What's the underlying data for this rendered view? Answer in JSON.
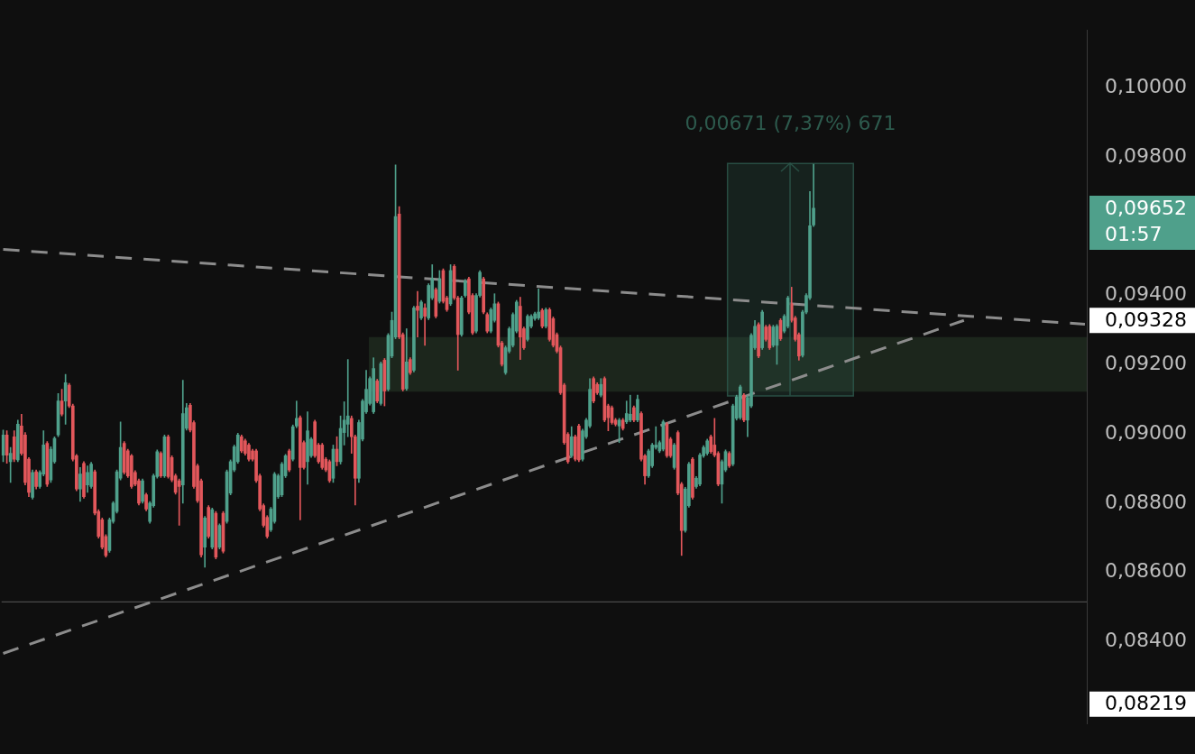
{
  "chart_data": {
    "type": "candlestick",
    "categories": [
      null,
      null,
      null,
      null,
      null,
      null,
      null,
      null,
      null,
      null,
      null,
      null,
      null,
      null,
      null,
      null,
      null,
      null,
      null,
      null,
      null,
      null,
      null,
      null,
      null,
      null,
      null,
      null,
      null,
      null,
      null,
      null,
      null,
      null,
      null,
      null,
      null,
      null,
      null,
      null,
      null,
      null,
      null,
      null,
      null,
      null,
      null,
      null,
      null,
      null,
      null,
      null,
      null,
      null,
      null,
      null,
      null,
      null,
      null,
      null,
      null,
      null,
      null,
      null,
      null,
      null,
      null,
      null,
      null,
      null,
      null,
      null,
      null,
      null,
      null,
      null,
      null,
      null,
      null,
      null,
      null,
      null,
      null,
      null,
      null,
      null,
      null,
      null,
      null,
      null,
      null,
      null,
      null,
      null,
      null,
      null,
      null,
      null,
      null,
      null,
      null,
      null,
      null,
      null,
      null,
      null,
      null,
      null,
      null,
      null,
      null,
      null,
      null,
      null,
      null,
      null,
      null,
      null,
      null,
      null,
      null,
      null,
      null,
      null,
      null,
      null,
      null,
      null,
      null,
      null,
      null,
      null,
      null,
      null,
      null,
      null,
      null,
      null,
      null,
      null,
      null,
      null,
      null,
      null,
      null,
      null,
      null,
      null,
      null,
      null,
      null,
      null,
      null,
      null,
      null,
      null,
      null,
      null,
      null,
      null,
      null,
      null,
      null,
      null,
      null,
      null,
      null,
      null,
      null,
      null,
      null,
      null,
      null,
      null,
      null,
      null,
      null,
      null,
      null,
      null,
      null,
      null,
      null,
      null,
      null,
      null,
      null,
      null,
      null,
      null,
      null,
      null,
      null,
      null,
      null,
      null,
      null,
      null,
      null,
      null,
      null,
      null,
      null,
      null,
      null,
      null,
      null,
      null,
      null,
      null,
      null,
      null,
      null,
      null,
      null,
      null,
      null,
      null,
      null,
      null,
      null,
      null,
      null,
      null,
      null,
      null,
      null,
      null,
      null,
      null,
      null,
      null,
      null,
      null,
      null,
      null,
      null,
      null,
      null,
      null,
      null,
      null,
      null,
      null,
      null,
      null,
      null,
      null,
      null,
      null,
      null,
      null,
      null,
      null,
      null,
      null,
      null,
      null,
      null,
      null,
      null,
      null,
      null,
      null,
      null,
      null,
      null,
      null,
      null,
      null,
      null,
      null,
      null,
      null,
      null,
      null,
      null,
      null,
      null,
      null,
      null,
      null,
      null,
      null,
      null,
      null,
      null,
      null,
      null,
      null,
      null,
      null,
      null,
      null,
      null,
      null
    ],
    "ohlc": [
      [
        0.08939,
        0.09011,
        0.0892,
        0.08997
      ],
      [
        0.08997,
        0.09009,
        0.08915,
        0.08939
      ],
      [
        0.0892,
        0.08961,
        0.0886,
        0.08944
      ],
      [
        0.08992,
        0.09009,
        0.0892,
        0.08927
      ],
      [
        0.08925,
        0.0904,
        0.0892,
        0.09028
      ],
      [
        0.09023,
        0.09057,
        0.08939,
        0.08944
      ],
      [
        0.08997,
        0.09004,
        0.08853,
        0.0886
      ],
      [
        0.08927,
        0.08932,
        0.08819,
        0.08831
      ],
      [
        0.08817,
        0.08896,
        0.08812,
        0.08889
      ],
      [
        0.08891,
        0.08896,
        0.08841,
        0.08848
      ],
      [
        0.08848,
        0.08894,
        0.08843,
        0.08889
      ],
      [
        0.08884,
        0.09009,
        0.08879,
        0.08968
      ],
      [
        0.08973,
        0.08978,
        0.08848,
        0.08855
      ],
      [
        0.08867,
        0.08963,
        0.0886,
        0.08956
      ],
      [
        0.0892,
        0.08992,
        0.08915,
        0.08987
      ],
      [
        0.08997,
        0.09117,
        0.08992,
        0.09095
      ],
      [
        0.09095,
        0.09129,
        0.09052,
        0.09057
      ],
      [
        0.09095,
        0.09172,
        0.09028,
        0.09148
      ],
      [
        0.09141,
        0.09146,
        0.09076,
        0.09081
      ],
      [
        0.09081,
        0.09086,
        0.08922,
        0.08927
      ],
      [
        0.08937,
        0.08941,
        0.08836,
        0.08841
      ],
      [
        0.08841,
        0.08903,
        0.08805,
        0.08884
      ],
      [
        0.08915,
        0.0892,
        0.08814,
        0.08819
      ],
      [
        0.08853,
        0.08908,
        0.08831,
        0.08889
      ],
      [
        0.08848,
        0.08918,
        0.08843,
        0.08913
      ],
      [
        0.08891,
        0.08896,
        0.08766,
        0.08771
      ],
      [
        0.08776,
        0.08781,
        0.08699,
        0.08704
      ],
      [
        0.08752,
        0.08757,
        0.08668,
        0.08673
      ],
      [
        0.08704,
        0.08709,
        0.08644,
        0.08649
      ],
      [
        0.08663,
        0.08757,
        0.08658,
        0.08752
      ],
      [
        0.08747,
        0.08805,
        0.08742,
        0.088
      ],
      [
        0.08776,
        0.08896,
        0.08771,
        0.08891
      ],
      [
        0.08872,
        0.09035,
        0.08867,
        0.08961
      ],
      [
        0.08973,
        0.08978,
        0.08884,
        0.08889
      ],
      [
        0.08951,
        0.08956,
        0.08874,
        0.08879
      ],
      [
        0.08937,
        0.08941,
        0.08843,
        0.08848
      ],
      [
        0.08889,
        0.08894,
        0.0885,
        0.08855
      ],
      [
        0.08865,
        0.0887,
        0.08795,
        0.088
      ],
      [
        0.08805,
        0.0887,
        0.088,
        0.08865
      ],
      [
        0.08824,
        0.08829,
        0.08778,
        0.08783
      ],
      [
        0.08747,
        0.08805,
        0.08742,
        0.088
      ],
      [
        0.08793,
        0.08884,
        0.08788,
        0.08879
      ],
      [
        0.08877,
        0.08954,
        0.08872,
        0.08949
      ],
      [
        0.08944,
        0.08949,
        0.08874,
        0.08879
      ],
      [
        0.08879,
        0.08997,
        0.08874,
        0.08992
      ],
      [
        0.08992,
        0.08997,
        0.08872,
        0.08877
      ],
      [
        0.08932,
        0.08937,
        0.08862,
        0.08867
      ],
      [
        0.08879,
        0.08884,
        0.08826,
        0.08831
      ],
      [
        0.08865,
        0.0887,
        0.08736,
        0.08848
      ],
      [
        0.08853,
        0.09155,
        0.088,
        0.09059
      ],
      [
        0.09016,
        0.09088,
        0.09011,
        0.09076
      ],
      [
        0.09083,
        0.09088,
        0.09006,
        0.09011
      ],
      [
        0.09033,
        0.09038,
        0.08843,
        0.08848
      ],
      [
        0.08908,
        0.08913,
        0.08802,
        0.08807
      ],
      [
        0.08865,
        0.0887,
        0.08644,
        0.08651
      ],
      [
        0.08673,
        0.08762,
        0.08615,
        0.08757
      ],
      [
        0.08788,
        0.08793,
        0.08699,
        0.08704
      ],
      [
        0.08673,
        0.08786,
        0.08668,
        0.08781
      ],
      [
        0.08771,
        0.08776,
        0.08639,
        0.08644
      ],
      [
        0.08673,
        0.0874,
        0.08668,
        0.08736
      ],
      [
        0.08771,
        0.08776,
        0.08656,
        0.08661
      ],
      [
        0.08747,
        0.08896,
        0.08742,
        0.08891
      ],
      [
        0.08829,
        0.08925,
        0.08824,
        0.0892
      ],
      [
        0.08896,
        0.08968,
        0.08891,
        0.08963
      ],
      [
        0.0892,
        0.09002,
        0.08915,
        0.08997
      ],
      [
        0.08992,
        0.08997,
        0.08946,
        0.08951
      ],
      [
        0.0898,
        0.08985,
        0.08939,
        0.08944
      ],
      [
        0.08968,
        0.08973,
        0.08922,
        0.08927
      ],
      [
        0.08951,
        0.08956,
        0.08922,
        0.08927
      ],
      [
        0.08951,
        0.08956,
        0.0886,
        0.08865
      ],
      [
        0.08879,
        0.08884,
        0.08778,
        0.08783
      ],
      [
        0.08793,
        0.08798,
        0.08731,
        0.08736
      ],
      [
        0.08759,
        0.08764,
        0.08699,
        0.08704
      ],
      [
        0.08723,
        0.08788,
        0.08718,
        0.08783
      ],
      [
        0.08747,
        0.08889,
        0.08742,
        0.08884
      ],
      [
        0.08819,
        0.08884,
        0.08814,
        0.08879
      ],
      [
        0.08824,
        0.08918,
        0.08819,
        0.08913
      ],
      [
        0.08879,
        0.08941,
        0.08874,
        0.08937
      ],
      [
        0.08951,
        0.08956,
        0.08891,
        0.08896
      ],
      [
        0.08927,
        0.09026,
        0.08922,
        0.09021
      ],
      [
        0.09023,
        0.09095,
        0.09018,
        0.09045
      ],
      [
        0.09047,
        0.09052,
        0.08752,
        0.08903
      ],
      [
        0.08975,
        0.0898,
        0.08898,
        0.08903
      ],
      [
        0.0892,
        0.09064,
        0.08855,
        0.09009
      ],
      [
        0.08937,
        0.0899,
        0.08932,
        0.08985
      ],
      [
        0.09035,
        0.0904,
        0.08932,
        0.08937
      ],
      [
        0.08968,
        0.08973,
        0.08915,
        0.0892
      ],
      [
        0.08968,
        0.08973,
        0.08898,
        0.08903
      ],
      [
        0.08927,
        0.08932,
        0.08891,
        0.08896
      ],
      [
        0.0892,
        0.08925,
        0.0886,
        0.08865
      ],
      [
        0.08872,
        0.08968,
        0.0886,
        0.08956
      ],
      [
        0.08956,
        0.08992,
        0.08908,
        0.0892
      ],
      [
        0.0892,
        0.09052,
        0.08913,
        0.09016
      ],
      [
        0.09004,
        0.09093,
        0.08968,
        0.0904
      ],
      [
        0.09028,
        0.09215,
        0.08992,
        0.09052
      ],
      [
        0.09045,
        0.09052,
        0.08944,
        0.08992
      ],
      [
        0.08992,
        0.08997,
        0.08795,
        0.08872
      ],
      [
        0.08872,
        0.0904,
        0.0886,
        0.09033
      ],
      [
        0.08985,
        0.091,
        0.0898,
        0.09095
      ],
      [
        0.09064,
        0.09184,
        0.09059,
        0.09129
      ],
      [
        0.09088,
        0.09165,
        0.09083,
        0.0916
      ],
      [
        0.09064,
        0.0922,
        0.09059,
        0.09189
      ],
      [
        0.09153,
        0.09158,
        0.0909,
        0.09095
      ],
      [
        0.09088,
        0.09208,
        0.09083,
        0.09203
      ],
      [
        0.09213,
        0.09218,
        0.09081,
        0.09124
      ],
      [
        0.09129,
        0.0929,
        0.09124,
        0.09285
      ],
      [
        0.09225,
        0.09352,
        0.0922,
        0.09328
      ],
      [
        0.0928,
        0.09777,
        0.09275,
        0.09628
      ],
      [
        0.09635,
        0.09657,
        0.09275,
        0.0928
      ],
      [
        0.09287,
        0.09292,
        0.09124,
        0.09129
      ],
      [
        0.09131,
        0.09304,
        0.09126,
        0.09208
      ],
      [
        0.09215,
        0.0922,
        0.09172,
        0.09177
      ],
      [
        0.09184,
        0.09369,
        0.09179,
        0.09364
      ],
      [
        0.09369,
        0.09412,
        0.0928,
        0.09357
      ],
      [
        0.09335,
        0.09386,
        0.0933,
        0.09381
      ],
      [
        0.09364,
        0.09376,
        0.09256,
        0.0934
      ],
      [
        0.09335,
        0.09434,
        0.0933,
        0.09429
      ],
      [
        0.09393,
        0.09489,
        0.09388,
        0.09448
      ],
      [
        0.09417,
        0.09422,
        0.09335,
        0.0934
      ],
      [
        0.09383,
        0.09472,
        0.09378,
        0.09448
      ],
      [
        0.09472,
        0.09477,
        0.09378,
        0.09383
      ],
      [
        0.09393,
        0.09398,
        0.09354,
        0.09359
      ],
      [
        0.09376,
        0.09489,
        0.09371,
        0.09472
      ],
      [
        0.09484,
        0.09489,
        0.09388,
        0.09393
      ],
      [
        0.09393,
        0.09398,
        0.09184,
        0.09287
      ],
      [
        0.09287,
        0.09398,
        0.09282,
        0.09393
      ],
      [
        0.094,
        0.09446,
        0.09395,
        0.09441
      ],
      [
        0.09448,
        0.09453,
        0.09347,
        0.09352
      ],
      [
        0.094,
        0.09405,
        0.09287,
        0.09292
      ],
      [
        0.09297,
        0.09405,
        0.09292,
        0.094
      ],
      [
        0.094,
        0.09472,
        0.09395,
        0.09467
      ],
      [
        0.09448,
        0.09453,
        0.09347,
        0.09352
      ],
      [
        0.09345,
        0.0935,
        0.09292,
        0.09297
      ],
      [
        0.09297,
        0.09364,
        0.09292,
        0.09359
      ],
      [
        0.09328,
        0.09405,
        0.09323,
        0.09376
      ],
      [
        0.09376,
        0.09381,
        0.09251,
        0.09256
      ],
      [
        0.09263,
        0.09268,
        0.09196,
        0.09201
      ],
      [
        0.09177,
        0.09254,
        0.09172,
        0.09249
      ],
      [
        0.09239,
        0.09309,
        0.09234,
        0.09304
      ],
      [
        0.09256,
        0.0935,
        0.09251,
        0.09345
      ],
      [
        0.09297,
        0.09386,
        0.09292,
        0.09381
      ],
      [
        0.09369,
        0.09395,
        0.09215,
        0.0928
      ],
      [
        0.09304,
        0.09309,
        0.09244,
        0.09249
      ],
      [
        0.09273,
        0.09345,
        0.09268,
        0.0934
      ],
      [
        0.09311,
        0.09345,
        0.09306,
        0.0934
      ],
      [
        0.09333,
        0.09352,
        0.09328,
        0.09347
      ],
      [
        0.09335,
        0.09419,
        0.0933,
        0.09352
      ],
      [
        0.09357,
        0.09362,
        0.09306,
        0.09311
      ],
      [
        0.09311,
        0.09364,
        0.09306,
        0.09359
      ],
      [
        0.09359,
        0.09364,
        0.09268,
        0.09273
      ],
      [
        0.09333,
        0.09338,
        0.09251,
        0.09256
      ],
      [
        0.09287,
        0.09292,
        0.09234,
        0.09239
      ],
      [
        0.09249,
        0.09254,
        0.09114,
        0.09119
      ],
      [
        0.09141,
        0.09146,
        0.0897,
        0.08975
      ],
      [
        0.08999,
        0.09004,
        0.08915,
        0.0892
      ],
      [
        0.08937,
        0.09021,
        0.08932,
        0.08992
      ],
      [
        0.08992,
        0.08997,
        0.08922,
        0.08927
      ],
      [
        0.09023,
        0.09028,
        0.0892,
        0.08925
      ],
      [
        0.08927,
        0.09014,
        0.08922,
        0.09009
      ],
      [
        0.08992,
        0.09045,
        0.08987,
        0.0904
      ],
      [
        0.09023,
        0.0916,
        0.09018,
        0.09129
      ],
      [
        0.0916,
        0.09165,
        0.0909,
        0.09095
      ],
      [
        0.09143,
        0.09148,
        0.09114,
        0.09119
      ],
      [
        0.09112,
        0.0916,
        0.09107,
        0.09143
      ],
      [
        0.0916,
        0.09165,
        0.09035,
        0.0904
      ],
      [
        0.09081,
        0.09086,
        0.09009,
        0.09047
      ],
      [
        0.09076,
        0.09081,
        0.09028,
        0.09033
      ],
      [
        0.0904,
        0.09045,
        0.09023,
        0.09028
      ],
      [
        0.09023,
        0.09045,
        0.08975,
        0.0904
      ],
      [
        0.0904,
        0.09045,
        0.09011,
        0.09016
      ],
      [
        0.09035,
        0.09095,
        0.0903,
        0.09059
      ],
      [
        0.0904,
        0.09112,
        0.09035,
        0.09057
      ],
      [
        0.09076,
        0.09081,
        0.09035,
        0.0904
      ],
      [
        0.0904,
        0.09112,
        0.09035,
        0.091
      ],
      [
        0.09059,
        0.09064,
        0.08922,
        0.08927
      ],
      [
        0.08937,
        0.08941,
        0.08855,
        0.08879
      ],
      [
        0.08879,
        0.08956,
        0.08874,
        0.08951
      ],
      [
        0.08908,
        0.08973,
        0.08903,
        0.08968
      ],
      [
        0.08961,
        0.09021,
        0.08956,
        0.08968
      ],
      [
        0.08951,
        0.0898,
        0.08946,
        0.08975
      ],
      [
        0.08956,
        0.0904,
        0.08951,
        0.09035
      ],
      [
        0.09028,
        0.09033,
        0.08932,
        0.08937
      ],
      [
        0.08985,
        0.0899,
        0.08932,
        0.08937
      ],
      [
        0.08903,
        0.08973,
        0.08898,
        0.08968
      ],
      [
        0.09004,
        0.09009,
        0.08824,
        0.08829
      ],
      [
        0.08855,
        0.0886,
        0.08649,
        0.08721
      ],
      [
        0.08721,
        0.08846,
        0.08716,
        0.08841
      ],
      [
        0.08793,
        0.08918,
        0.08788,
        0.08913
      ],
      [
        0.08927,
        0.08932,
        0.08812,
        0.08817
      ],
      [
        0.08848,
        0.08877,
        0.08843,
        0.08872
      ],
      [
        0.08855,
        0.08944,
        0.0885,
        0.08939
      ],
      [
        0.08937,
        0.08966,
        0.08932,
        0.08961
      ],
      [
        0.08944,
        0.08985,
        0.08939,
        0.0898
      ],
      [
        0.08992,
        0.08997,
        0.08944,
        0.08949
      ],
      [
        0.08968,
        0.09045,
        0.08934,
        0.08939
      ],
      [
        0.08944,
        0.08949,
        0.0885,
        0.08855
      ],
      [
        0.08855,
        0.08925,
        0.088,
        0.0892
      ],
      [
        0.08896,
        0.08954,
        0.08891,
        0.08949
      ],
      [
        0.08944,
        0.08949,
        0.08903,
        0.08908
      ],
      [
        0.08913,
        0.09086,
        0.08908,
        0.09081
      ],
      [
        0.09045,
        0.09112,
        0.0904,
        0.09107
      ],
      [
        0.09047,
        0.09141,
        0.09042,
        0.09136
      ],
      [
        0.09112,
        0.09117,
        0.09035,
        0.0904
      ],
      [
        0.0904,
        0.0911,
        0.08992,
        0.09105
      ],
      [
        0.09081,
        0.0929,
        0.09076,
        0.09285
      ],
      [
        0.09249,
        0.09328,
        0.09244,
        0.09311
      ],
      [
        0.09316,
        0.09321,
        0.0922,
        0.09225
      ],
      [
        0.09249,
        0.09357,
        0.09244,
        0.09352
      ],
      [
        0.09309,
        0.09314,
        0.09268,
        0.09273
      ],
      [
        0.09311,
        0.09316,
        0.09244,
        0.09249
      ],
      [
        0.09256,
        0.09314,
        0.09251,
        0.09309
      ],
      [
        0.09256,
        0.09316,
        0.09201,
        0.09311
      ],
      [
        0.09328,
        0.09333,
        0.0927,
        0.09275
      ],
      [
        0.09297,
        0.09345,
        0.09292,
        0.0934
      ],
      [
        0.09311,
        0.09398,
        0.09306,
        0.09393
      ],
      [
        0.09376,
        0.09424,
        0.09323,
        0.09328
      ],
      [
        0.09335,
        0.0934,
        0.09268,
        0.09273
      ],
      [
        0.09287,
        0.09292,
        0.09213,
        0.09225
      ],
      [
        0.09227,
        0.09357,
        0.09222,
        0.09352
      ],
      [
        0.09352,
        0.09405,
        0.09347,
        0.094
      ],
      [
        0.09393,
        0.097,
        0.09388,
        0.09601
      ],
      [
        0.09604,
        0.09779,
        0.09599,
        0.09652
      ],
      null,
      null,
      null,
      null,
      null,
      null,
      null,
      null,
      null,
      null,
      null,
      null,
      null,
      null,
      null,
      null,
      null,
      null,
      null,
      null,
      null,
      null,
      null,
      null,
      null,
      null,
      null,
      null,
      null,
      null,
      null,
      null,
      null,
      null,
      null,
      null,
      null,
      null,
      null,
      null,
      null,
      null,
      null,
      null,
      null,
      null,
      null,
      null,
      null,
      null,
      null,
      null,
      null,
      null,
      null,
      null,
      null,
      null,
      null,
      null,
      null,
      null,
      null,
      null,
      null,
      null,
      null,
      null,
      null,
      null,
      null,
      null,
      null,
      null
    ],
    "colors": [
      "#4fa08b",
      "#e2575b",
      "#4fa08b",
      "#e2575b",
      "#4fa08b",
      "#e2575b",
      "#e2575b",
      "#e2575b",
      "#4fa08b",
      "#e2575b",
      "#4fa08b",
      "#4fa08b",
      "#e2575b",
      "#4fa08b",
      "#4fa08b",
      "#4fa08b",
      "#e2575b",
      "#4fa08b",
      "#e2575b",
      "#e2575b",
      "#e2575b",
      "#4fa08b",
      "#e2575b",
      "#4fa08b",
      "#4fa08b",
      "#e2575b",
      "#e2575b",
      "#e2575b",
      "#e2575b",
      "#4fa08b",
      "#4fa08b",
      "#4fa08b",
      "#4fa08b",
      "#e2575b",
      "#e2575b",
      "#e2575b",
      "#e2575b",
      "#e2575b",
      "#4fa08b",
      "#e2575b",
      "#4fa08b",
      "#4fa08b",
      "#4fa08b",
      "#e2575b",
      "#4fa08b",
      "#e2575b",
      "#e2575b",
      "#e2575b",
      "#e2575b",
      "#4fa08b",
      "#4fa08b",
      "#e2575b",
      "#e2575b",
      "#e2575b",
      "#e2575b",
      "#4fa08b",
      "#e2575b",
      "#4fa08b",
      "#e2575b",
      "#4fa08b",
      "#e2575b",
      "#4fa08b",
      "#4fa08b",
      "#4fa08b",
      "#4fa08b",
      "#e2575b",
      "#e2575b",
      "#e2575b",
      "#e2575b",
      "#e2575b",
      "#e2575b",
      "#e2575b",
      "#e2575b",
      "#4fa08b",
      "#4fa08b",
      "#4fa08b",
      "#4fa08b",
      "#4fa08b",
      "#e2575b",
      "#4fa08b",
      "#4fa08b",
      "#e2575b",
      "#e2575b",
      "#4fa08b",
      "#4fa08b",
      "#e2575b",
      "#e2575b",
      "#e2575b",
      "#e2575b",
      "#e2575b",
      "#4fa08b",
      "#e2575b",
      "#4fa08b",
      "#4fa08b",
      "#4fa08b",
      "#e2575b",
      "#e2575b",
      "#4fa08b",
      "#4fa08b",
      "#4fa08b",
      "#4fa08b",
      "#4fa08b",
      "#e2575b",
      "#4fa08b",
      "#e2575b",
      "#4fa08b",
      "#4fa08b",
      "#4fa08b",
      "#e2575b",
      "#e2575b",
      "#4fa08b",
      "#e2575b",
      "#4fa08b",
      "#e2575b",
      "#4fa08b",
      "#e2575b",
      "#4fa08b",
      "#4fa08b",
      "#e2575b",
      "#4fa08b",
      "#e2575b",
      "#e2575b",
      "#4fa08b",
      "#e2575b",
      "#e2575b",
      "#4fa08b",
      "#4fa08b",
      "#e2575b",
      "#e2575b",
      "#4fa08b",
      "#4fa08b",
      "#e2575b",
      "#e2575b",
      "#4fa08b",
      "#4fa08b",
      "#e2575b",
      "#e2575b",
      "#4fa08b",
      "#4fa08b",
      "#4fa08b",
      "#4fa08b",
      "#e2575b",
      "#e2575b",
      "#4fa08b",
      "#4fa08b",
      "#4fa08b",
      "#4fa08b",
      "#e2575b",
      "#4fa08b",
      "#e2575b",
      "#e2575b",
      "#e2575b",
      "#e2575b",
      "#e2575b",
      "#e2575b",
      "#4fa08b",
      "#e2575b",
      "#e2575b",
      "#4fa08b",
      "#4fa08b",
      "#4fa08b",
      "#e2575b",
      "#e2575b",
      "#4fa08b",
      "#e2575b",
      "#e2575b",
      "#e2575b",
      "#e2575b",
      "#4fa08b",
      "#e2575b",
      "#4fa08b",
      "#4fa08b",
      "#e2575b",
      "#4fa08b",
      "#e2575b",
      "#e2575b",
      "#4fa08b",
      "#4fa08b",
      "#4fa08b",
      "#4fa08b",
      "#4fa08b",
      "#e2575b",
      "#e2575b",
      "#4fa08b",
      "#e2575b",
      "#e2575b",
      "#4fa08b",
      "#4fa08b",
      "#e2575b",
      "#4fa08b",
      "#4fa08b",
      "#4fa08b",
      "#4fa08b",
      "#e2575b",
      "#e2575b",
      "#e2575b",
      "#4fa08b",
      "#4fa08b",
      "#e2575b",
      "#4fa08b",
      "#4fa08b",
      "#4fa08b",
      "#e2575b",
      "#4fa08b",
      "#4fa08b",
      "#4fa08b",
      "#e2575b",
      "#4fa08b",
      "#e2575b",
      "#e2575b",
      "#4fa08b",
      "#4fa08b",
      "#e2575b",
      "#4fa08b",
      "#4fa08b",
      "#e2575b",
      "#e2575b",
      "#e2575b",
      "#4fa08b",
      "#4fa08b",
      "#4fa08b",
      "#4fa08b",
      null,
      null,
      null,
      null,
      null,
      null,
      null,
      null,
      null,
      null,
      null,
      null,
      null,
      null,
      null,
      null,
      null,
      null,
      null,
      null,
      null,
      null,
      null,
      null,
      null,
      null,
      null,
      null,
      null,
      null,
      null,
      null,
      null,
      null,
      null,
      null,
      null,
      null,
      null,
      null,
      null,
      null,
      null,
      null,
      null,
      null,
      null,
      null,
      null,
      null,
      null,
      null,
      null,
      null,
      null,
      null,
      null,
      null,
      null,
      null,
      null,
      null,
      null,
      null,
      null,
      null,
      null,
      null,
      null,
      null,
      null,
      null,
      null,
      null
    ],
    "series": [
      {
        "type": "line",
        "color": "#8c8c8c",
        "line_style": "dashed",
        "values": [
          0.08366,
          null,
          null,
          null,
          null,
          null,
          null,
          null,
          null,
          null,
          null,
          null,
          null,
          null,
          null,
          null,
          null,
          null,
          null,
          null,
          null,
          null,
          null,
          null,
          null,
          null,
          null,
          null,
          null,
          null,
          null,
          null,
          null,
          null,
          null,
          null,
          null,
          null,
          null,
          null,
          null,
          null,
          null,
          null,
          null,
          null,
          null,
          null,
          null,
          null,
          null,
          null,
          null,
          null,
          null,
          null,
          null,
          null,
          null,
          null,
          null,
          null,
          null,
          null,
          null,
          null,
          null,
          null,
          null,
          null,
          null,
          null,
          null,
          null,
          null,
          null,
          null,
          null,
          null,
          null,
          null,
          null,
          null,
          null,
          null,
          null,
          null,
          null,
          null,
          null,
          null,
          null,
          null,
          null,
          null,
          null,
          null,
          null,
          null,
          null,
          null,
          null,
          null,
          null,
          null,
          null,
          null,
          null,
          null,
          null,
          null,
          null,
          null,
          null,
          null,
          null,
          null,
          null,
          null,
          null,
          null,
          null,
          null,
          null,
          null,
          null,
          null,
          null,
          null,
          null,
          null,
          null,
          null,
          null,
          null,
          null,
          null,
          null,
          null,
          null,
          null,
          null,
          null,
          null,
          null,
          null,
          null,
          null,
          null,
          null,
          null,
          null,
          null,
          null,
          null,
          null,
          null,
          null,
          null,
          null,
          null,
          null,
          null,
          null,
          null,
          null,
          null,
          null,
          null,
          null,
          null,
          null,
          null,
          null,
          null,
          null,
          null,
          null,
          null,
          null,
          null,
          null,
          null,
          null,
          null,
          null,
          null,
          null,
          null,
          null,
          null,
          null,
          null,
          null,
          null,
          null,
          null,
          null,
          null,
          null,
          null,
          null,
          null,
          null,
          null,
          null,
          null,
          null,
          null,
          null,
          null,
          null,
          null,
          null,
          null,
          null,
          null,
          null,
          null,
          null,
          null,
          null,
          null,
          null,
          null,
          null,
          null,
          null,
          null,
          null,
          null,
          null,
          null,
          null,
          null,
          null,
          null,
          null,
          null,
          null,
          null,
          null,
          null,
          null,
          null,
          null,
          null,
          null,
          null,
          null,
          null,
          null,
          null,
          null,
          null,
          null,
          null,
          null,
          null,
          null,
          null,
          null,
          0.09328,
          null,
          null,
          null,
          null,
          null,
          null,
          null,
          null,
          null,
          null,
          null,
          null,
          null,
          null,
          null,
          null,
          null,
          null,
          null,
          null,
          null,
          null,
          null,
          null,
          null,
          null,
          null,
          null,
          null,
          null,
          null,
          null,
          null
        ]
      },
      {
        "type": "line",
        "color": "#8c8c8c",
        "line_style": "dashed",
        "values": [
          0.09533,
          null,
          null,
          null,
          null,
          null,
          null,
          null,
          null,
          null,
          null,
          null,
          null,
          null,
          null,
          null,
          null,
          null,
          null,
          null,
          null,
          null,
          null,
          null,
          null,
          null,
          null,
          null,
          null,
          null,
          null,
          null,
          null,
          null,
          null,
          null,
          null,
          null,
          null,
          null,
          null,
          null,
          null,
          null,
          null,
          null,
          null,
          null,
          null,
          null,
          null,
          null,
          null,
          null,
          null,
          null,
          null,
          null,
          null,
          null,
          null,
          null,
          null,
          null,
          null,
          null,
          null,
          null,
          null,
          null,
          null,
          null,
          null,
          null,
          null,
          null,
          null,
          null,
          null,
          null,
          null,
          null,
          null,
          null,
          null,
          null,
          null,
          null,
          null,
          null,
          null,
          null,
          null,
          null,
          null,
          null,
          null,
          null,
          null,
          null,
          null,
          null,
          null,
          null,
          null,
          null,
          null,
          null,
          null,
          null,
          null,
          null,
          null,
          null,
          null,
          null,
          null,
          null,
          null,
          null,
          null,
          null,
          null,
          null,
          null,
          null,
          null,
          null,
          null,
          null,
          null,
          null,
          null,
          null,
          null,
          null,
          null,
          null,
          null,
          null,
          null,
          null,
          null,
          null,
          null,
          null,
          null,
          null,
          null,
          null,
          null,
          null,
          null,
          null,
          null,
          null,
          null,
          null,
          null,
          null,
          null,
          null,
          null,
          null,
          null,
          null,
          null,
          null,
          null,
          null,
          null,
          null,
          null,
          null,
          null,
          null,
          null,
          null,
          null,
          null,
          null,
          null,
          null,
          null,
          null,
          null,
          null,
          null,
          null,
          null,
          null,
          null,
          null,
          null,
          null,
          null,
          null,
          null,
          null,
          null,
          null,
          null,
          null,
          null,
          null,
          null,
          null,
          null,
          null,
          null,
          null,
          null,
          null,
          null,
          null,
          null,
          null,
          null,
          null,
          null,
          null,
          null,
          null,
          null,
          null,
          null,
          null,
          null,
          null,
          null,
          null,
          null,
          null,
          null,
          null,
          null,
          null,
          null,
          null,
          null,
          null,
          null,
          null,
          null,
          null,
          null,
          null,
          null,
          null,
          null,
          null,
          null,
          null,
          null,
          null,
          null,
          null,
          null,
          null,
          null,
          null,
          null,
          null,
          null,
          null,
          null,
          null,
          null,
          null,
          null,
          null,
          null,
          null,
          null,
          null,
          null,
          null,
          null,
          null,
          null,
          null,
          null,
          null,
          null,
          null,
          null,
          null,
          null,
          null,
          null,
          null,
          null,
          null,
          null,
          null,
          0.09317
        ]
      }
    ],
    "ylim": [
      0.08162,
      0.10167
    ],
    "yticks": [
      {
        "value": 0.084,
        "label": "0,08400"
      },
      {
        "value": 0.086,
        "label": "0,08600"
      },
      {
        "value": 0.088,
        "label": "0,08800"
      },
      {
        "value": 0.09,
        "label": "0,09000"
      },
      {
        "value": 0.092,
        "label": "0,09200"
      },
      {
        "value": 0.094,
        "label": "0,09400"
      },
      {
        "value": 0.098,
        "label": "0,09800"
      },
      {
        "value": 0.1,
        "label": "0,10000"
      }
    ],
    "tick_labels": "y",
    "ref_lines": [
      {
        "axis": "y",
        "value": 0.08515,
        "color": "#4a4a4a",
        "line_style": "solid"
      }
    ],
    "bands": [
      {
        "axis": "y",
        "from": 0.09122,
        "to": 0.0928,
        "color": "#436b43"
      },
      {
        "axis": "y",
        "from": 0.0911,
        "to": 0.09781,
        "label": "0,00671 (7,37%) 671",
        "color": "#2d5a4d"
      }
    ],
    "annotations": [
      "0,09652",
      "01:57",
      "0,09328",
      "0,08219"
    ]
  }
}
